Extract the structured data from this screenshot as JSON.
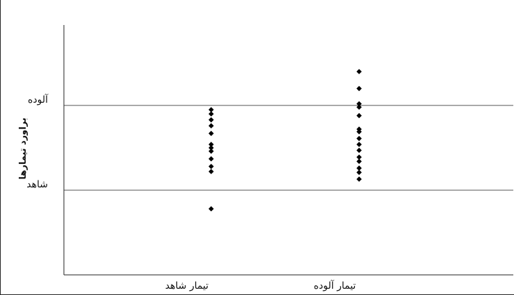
{
  "chart_data": {
    "type": "scatter",
    "title": "",
    "xlabel": "",
    "ylabel": "براورد تیمارها",
    "categories": [
      "تیمار شاهد",
      "تیمار آلوده"
    ],
    "ytick_labels": [
      {
        "label": "آلوده",
        "value": 2
      },
      {
        "label": "شاهد",
        "value": 1
      }
    ],
    "hlines": [
      1,
      2
    ],
    "ylim": [
      0.0,
      2.95
    ],
    "grid": false,
    "series": [
      {
        "category": "تیمار شاهد",
        "values": [
          1.95,
          1.9,
          1.83,
          1.76,
          1.67,
          1.54,
          1.5,
          1.46,
          1.37,
          1.28,
          1.22,
          0.78
        ]
      },
      {
        "category": "تیمار آلوده",
        "values": [
          2.4,
          2.2,
          2.02,
          1.98,
          1.88,
          1.72,
          1.69,
          1.61,
          1.54,
          1.47,
          1.39,
          1.34,
          1.26,
          1.21,
          1.13
        ]
      }
    ],
    "marker_color": "#000000",
    "line_color": "#555555"
  }
}
